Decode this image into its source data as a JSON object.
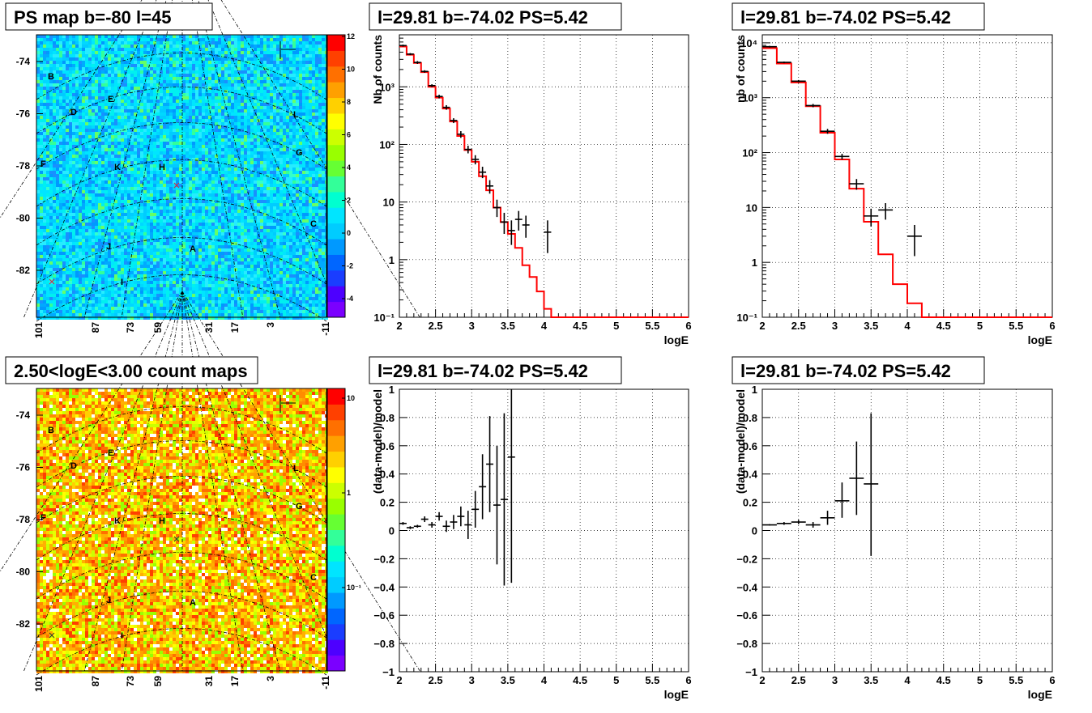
{
  "page": {
    "background": "#ffffff",
    "title_box_fill": "#ffffff",
    "axis_color": "#000000",
    "grid_color": "#000000",
    "model_color": "#ff0000",
    "data_color": "#000000"
  },
  "sky_labels": [
    "B",
    "D",
    "E",
    "L",
    "G",
    "F",
    "K",
    "H",
    "C",
    "J",
    "A",
    "I"
  ],
  "map_panels": [
    {
      "id": "ps-map",
      "title": "PS map b=-80 l=45",
      "style": "ps",
      "y_ticks": [
        "-74",
        "-76",
        "-78",
        "-80",
        "-82"
      ],
      "x_ticks": [
        "101",
        "87",
        "73",
        "59",
        "31",
        "17",
        "3",
        "-11"
      ],
      "colorbar": {
        "ticks": [
          "12",
          "10",
          "8",
          "6",
          "4",
          "2",
          "0",
          "-2",
          "-4"
        ],
        "colors": [
          "#7b00ff",
          "#4d00ff",
          "#1a3dff",
          "#0066ff",
          "#0099ff",
          "#00ccff",
          "#00e5ff",
          "#00ffd0",
          "#33ff99",
          "#66ff33",
          "#99ff00",
          "#ccff00",
          "#ffff00",
          "#ffd000",
          "#ffa000",
          "#ff7000",
          "#ff4000",
          "#ff0000"
        ]
      }
    },
    {
      "id": "count-map",
      "title": "2.50<logE<3.00 count maps",
      "style": "count",
      "y_ticks": [
        "-74",
        "-76",
        "-78",
        "-80",
        "-82"
      ],
      "x_ticks": [
        "101",
        "87",
        "73",
        "59",
        "31",
        "17",
        "3",
        "-11"
      ],
      "colorbar": {
        "ticks": [
          "10",
          "1",
          "10⁻¹"
        ],
        "colors": [
          "#7b00ff",
          "#4d00ff",
          "#1a3dff",
          "#0066ff",
          "#0099ff",
          "#00ccff",
          "#00e5ff",
          "#00ffd0",
          "#33ff99",
          "#66ff33",
          "#99ff00",
          "#ccff00",
          "#ffff00",
          "#ffd000",
          "#ffa000",
          "#ff7000",
          "#ff4000",
          "#ff0000"
        ]
      }
    }
  ],
  "chart_data": [
    {
      "id": "spectrum-left",
      "type": "line",
      "title": "l=29.81 b=-74.02 PS=5.42",
      "xlabel": "logE",
      "ylabel": "Nb of counts",
      "xlim": [
        2,
        6
      ],
      "ylim": [
        0.1,
        8000
      ],
      "log_y": true,
      "grid": true,
      "x_ticks": [
        "2",
        "2.5",
        "3",
        "3.5",
        "4",
        "4.5",
        "5",
        "5.5",
        "6"
      ],
      "y_ticks": [
        "10⁻¹",
        "1",
        "10",
        "10²",
        "10³"
      ],
      "model_step": {
        "edges": [
          2.0,
          2.1,
          2.2,
          2.3,
          2.4,
          2.5,
          2.6,
          2.7,
          2.8,
          2.9,
          3.0,
          3.1,
          3.2,
          3.3,
          3.4,
          3.5,
          3.6,
          3.7,
          3.8,
          3.9,
          4.0,
          4.1,
          6.0
        ],
        "values": [
          5000,
          3600,
          2600,
          1800,
          1000,
          650,
          420,
          250,
          140,
          80,
          50,
          28,
          16,
          8,
          4.5,
          2.8,
          1.6,
          0.8,
          0.5,
          0.28,
          0.14,
          0.1
        ]
      },
      "points": [
        {
          "x": 2.05,
          "y": 5200,
          "ylo": 5000,
          "yhi": 5400,
          "xerr": 0.05
        },
        {
          "x": 2.15,
          "y": 3700,
          "ylo": 3550,
          "yhi": 3850,
          "xerr": 0.05
        },
        {
          "x": 2.25,
          "y": 2650,
          "ylo": 2500,
          "yhi": 2800,
          "xerr": 0.05
        },
        {
          "x": 2.35,
          "y": 1850,
          "ylo": 1760,
          "yhi": 1940,
          "xerr": 0.05
        },
        {
          "x": 2.45,
          "y": 1050,
          "ylo": 990,
          "yhi": 1110,
          "xerr": 0.05
        },
        {
          "x": 2.55,
          "y": 680,
          "ylo": 630,
          "yhi": 730,
          "xerr": 0.05
        },
        {
          "x": 2.65,
          "y": 440,
          "ylo": 400,
          "yhi": 480,
          "xerr": 0.05
        },
        {
          "x": 2.75,
          "y": 260,
          "ylo": 235,
          "yhi": 285,
          "xerr": 0.05
        },
        {
          "x": 2.85,
          "y": 150,
          "ylo": 130,
          "yhi": 170,
          "xerr": 0.05
        },
        {
          "x": 2.95,
          "y": 82,
          "ylo": 70,
          "yhi": 95,
          "xerr": 0.05
        },
        {
          "x": 3.05,
          "y": 55,
          "ylo": 45,
          "yhi": 65,
          "xerr": 0.05
        },
        {
          "x": 3.15,
          "y": 33,
          "ylo": 26,
          "yhi": 41,
          "xerr": 0.05
        },
        {
          "x": 3.25,
          "y": 19,
          "ylo": 14,
          "yhi": 24,
          "xerr": 0.05
        },
        {
          "x": 3.35,
          "y": 8,
          "ylo": 5.5,
          "yhi": 11,
          "xerr": 0.05
        },
        {
          "x": 3.45,
          "y": 4.5,
          "ylo": 2.8,
          "yhi": 6.5,
          "xerr": 0.05
        },
        {
          "x": 3.55,
          "y": 3.2,
          "ylo": 1.8,
          "yhi": 4.8,
          "xerr": 0.05
        },
        {
          "x": 3.65,
          "y": 5,
          "ylo": 3.2,
          "yhi": 7
        },
        {
          "x": 3.75,
          "y": 4,
          "ylo": 2.4,
          "yhi": 5.8
        },
        {
          "x": 4.05,
          "y": 3,
          "ylo": 1.3,
          "yhi": 4.8
        }
      ]
    },
    {
      "id": "spectrum-right",
      "type": "line",
      "title": "l=29.81 b=-74.02 PS=5.42",
      "xlabel": "logE",
      "ylabel": "nb of counts",
      "xlim": [
        2,
        6
      ],
      "ylim": [
        0.1,
        14000
      ],
      "log_y": true,
      "grid": true,
      "x_ticks": [
        "2",
        "2.5",
        "3",
        "3.5",
        "4",
        "4.5",
        "5",
        "5.5",
        "6"
      ],
      "y_ticks": [
        "10⁻¹",
        "1",
        "10",
        "10²",
        "10³",
        "10⁴"
      ],
      "model_step": {
        "edges": [
          2.0,
          2.2,
          2.4,
          2.6,
          2.8,
          3.0,
          3.2,
          3.4,
          3.6,
          3.8,
          4.0,
          4.2,
          6.0
        ],
        "values": [
          8000,
          4200,
          1900,
          700,
          230,
          75,
          22,
          5.5,
          1.4,
          0.4,
          0.18,
          0.1
        ]
      },
      "points": [
        {
          "x": 2.1,
          "y": 8500,
          "ylo": 8200,
          "yhi": 8800,
          "xerr": 0.1
        },
        {
          "x": 2.3,
          "y": 4400,
          "ylo": 4250,
          "yhi": 4550,
          "xerr": 0.1
        },
        {
          "x": 2.5,
          "y": 2000,
          "ylo": 1900,
          "yhi": 2100,
          "xerr": 0.1
        },
        {
          "x": 2.7,
          "y": 720,
          "ylo": 670,
          "yhi": 770,
          "xerr": 0.1
        },
        {
          "x": 2.9,
          "y": 245,
          "ylo": 220,
          "yhi": 270,
          "xerr": 0.1
        },
        {
          "x": 3.1,
          "y": 85,
          "ylo": 75,
          "yhi": 95,
          "xerr": 0.1
        },
        {
          "x": 3.3,
          "y": 27,
          "ylo": 21,
          "yhi": 33,
          "xerr": 0.1
        },
        {
          "x": 3.5,
          "y": 7,
          "ylo": 4.5,
          "yhi": 9.5,
          "xerr": 0.1
        },
        {
          "x": 3.7,
          "y": 9,
          "ylo": 6,
          "yhi": 12,
          "xerr": 0.1
        },
        {
          "x": 4.1,
          "y": 3,
          "ylo": 1.3,
          "yhi": 4.8,
          "xerr": 0.1
        }
      ]
    },
    {
      "id": "residual-left",
      "type": "scatter",
      "title": "l=29.81 b=-74.02 PS=5.42",
      "xlabel": "logE",
      "ylabel": "(data-model)/model",
      "xlim": [
        2,
        6
      ],
      "ylim": [
        -1,
        1
      ],
      "log_y": false,
      "grid": true,
      "x_ticks": [
        "2",
        "2.5",
        "3",
        "3.5",
        "4",
        "4.5",
        "5",
        "5.5",
        "6"
      ],
      "y_ticks": [
        "−1",
        "−0.8",
        "−0.6",
        "−0.4",
        "−0.2",
        "0",
        "0.2",
        "0.4",
        "0.6",
        "0.8",
        "1"
      ],
      "points": [
        {
          "x": 2.05,
          "y": 0.05,
          "ylo": 0.04,
          "yhi": 0.06,
          "xerr": 0.05
        },
        {
          "x": 2.15,
          "y": 0.02,
          "ylo": 0.01,
          "yhi": 0.03,
          "xerr": 0.05
        },
        {
          "x": 2.25,
          "y": 0.03,
          "ylo": 0.02,
          "yhi": 0.04,
          "xerr": 0.05
        },
        {
          "x": 2.35,
          "y": 0.08,
          "ylo": 0.06,
          "yhi": 0.1,
          "xerr": 0.05
        },
        {
          "x": 2.45,
          "y": 0.04,
          "ylo": 0.02,
          "yhi": 0.06,
          "xerr": 0.05
        },
        {
          "x": 2.55,
          "y": 0.1,
          "ylo": 0.07,
          "yhi": 0.13,
          "xerr": 0.05
        },
        {
          "x": 2.65,
          "y": 0.03,
          "ylo": -0.01,
          "yhi": 0.07,
          "xerr": 0.05
        },
        {
          "x": 2.75,
          "y": 0.06,
          "ylo": 0.01,
          "yhi": 0.11,
          "xerr": 0.05
        },
        {
          "x": 2.85,
          "y": 0.1,
          "ylo": 0.03,
          "yhi": 0.17,
          "xerr": 0.05
        },
        {
          "x": 2.95,
          "y": 0.04,
          "ylo": -0.06,
          "yhi": 0.14,
          "xerr": 0.05
        },
        {
          "x": 3.05,
          "y": 0.15,
          "ylo": 0.02,
          "yhi": 0.28,
          "xerr": 0.05
        },
        {
          "x": 3.15,
          "y": 0.31,
          "ylo": 0.08,
          "yhi": 0.54,
          "xerr": 0.05
        },
        {
          "x": 3.25,
          "y": 0.47,
          "ylo": 0.13,
          "yhi": 0.81,
          "xerr": 0.05
        },
        {
          "x": 3.35,
          "y": 0.18,
          "ylo": -0.24,
          "yhi": 0.6,
          "xerr": 0.05
        },
        {
          "x": 3.45,
          "y": 0.22,
          "ylo": -0.39,
          "yhi": 0.83,
          "xerr": 0.05
        },
        {
          "x": 3.55,
          "y": 0.52,
          "ylo": -0.37,
          "yhi": 1.0,
          "xerr": 0.05
        }
      ]
    },
    {
      "id": "residual-right",
      "type": "scatter",
      "title": "l=29.81 b=-74.02 PS=5.42",
      "xlabel": "logE",
      "ylabel": "(data-model)/model",
      "xlim": [
        2,
        6
      ],
      "ylim": [
        -1,
        1
      ],
      "log_y": false,
      "grid": true,
      "x_ticks": [
        "2",
        "2.5",
        "3",
        "3.5",
        "4",
        "4.5",
        "5",
        "5.5",
        "6"
      ],
      "y_ticks": [
        "−1",
        "−0.8",
        "−0.6",
        "−0.4",
        "−0.2",
        "0",
        "0.2",
        "0.4",
        "0.6",
        "0.8",
        "1"
      ],
      "points": [
        {
          "x": 2.1,
          "y": 0.04,
          "ylo": 0.035,
          "yhi": 0.045,
          "xerr": 0.1
        },
        {
          "x": 2.3,
          "y": 0.05,
          "ylo": 0.04,
          "yhi": 0.06,
          "xerr": 0.1
        },
        {
          "x": 2.5,
          "y": 0.06,
          "ylo": 0.045,
          "yhi": 0.075,
          "xerr": 0.1
        },
        {
          "x": 2.7,
          "y": 0.04,
          "ylo": 0.02,
          "yhi": 0.06,
          "xerr": 0.1
        },
        {
          "x": 2.9,
          "y": 0.09,
          "ylo": 0.04,
          "yhi": 0.14,
          "xerr": 0.1
        },
        {
          "x": 3.1,
          "y": 0.21,
          "ylo": 0.09,
          "yhi": 0.34,
          "xerr": 0.1
        },
        {
          "x": 3.3,
          "y": 0.37,
          "ylo": 0.11,
          "yhi": 0.63,
          "xerr": 0.1
        },
        {
          "x": 3.5,
          "y": 0.33,
          "ylo": -0.18,
          "yhi": 0.83,
          "xerr": 0.1
        }
      ]
    }
  ]
}
